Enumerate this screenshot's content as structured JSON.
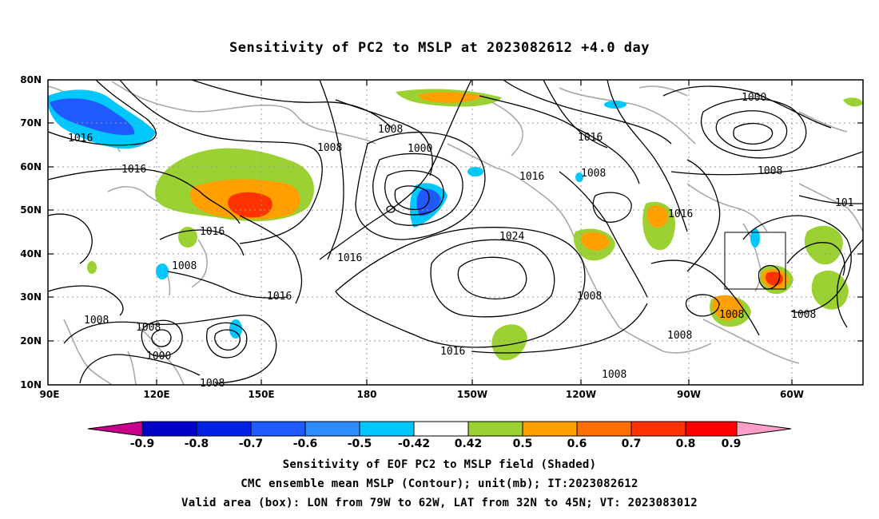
{
  "title": "Sensitivity of PC2 to MSLP at 2023082612 +4.0 day",
  "axes": {
    "lat_ticks": [
      "80N",
      "70N",
      "60N",
      "50N",
      "40N",
      "30N",
      "20N",
      "10N"
    ],
    "lon_ticks": [
      "90E",
      "120E",
      "150E",
      "180",
      "150W",
      "120W",
      "90W",
      "60W"
    ]
  },
  "contour_labels": [
    "1016",
    "1008",
    "1000",
    "1008",
    "1016",
    "1008",
    "1016",
    "1016",
    "1008",
    "1016",
    "1008",
    "1000",
    "1008",
    "1000",
    "1008",
    "1016",
    "1024",
    "1016",
    "1008",
    "1008",
    "1016",
    "1008",
    "101",
    "1008",
    "1016",
    "1008",
    "1008"
  ],
  "colorbar": {
    "labels": [
      "-0.9",
      "-0.8",
      "-0.7",
      "-0.6",
      "-0.5",
      "-0.42",
      "0.42",
      "0.5",
      "0.6",
      "0.7",
      "0.8",
      "0.9"
    ],
    "colors": [
      "#0000c8",
      "#0022e6",
      "#1e5aff",
      "#2f8cff",
      "#00c8ff",
      "#ffffff",
      "#9bd132",
      "#ff9f00",
      "#ff6e00",
      "#ff3300",
      "#ff0000"
    ],
    "low_extend_color": "#c8008c",
    "high_extend_color": "#ff9ec8"
  },
  "validation_box": {
    "lon_min": "79W",
    "lon_max": "62W",
    "lat_min": "32N",
    "lat_max": "45N"
  },
  "captions": [
    "Sensitivity of EOF PC2 to MSLP field (Shaded)",
    "CMC ensemble mean MSLP (Contour); unit(mb); IT:2023082612",
    "Valid area (box): LON from 79W to 62W, LAT from 32N to 45N; VT: 2023083012"
  ]
}
